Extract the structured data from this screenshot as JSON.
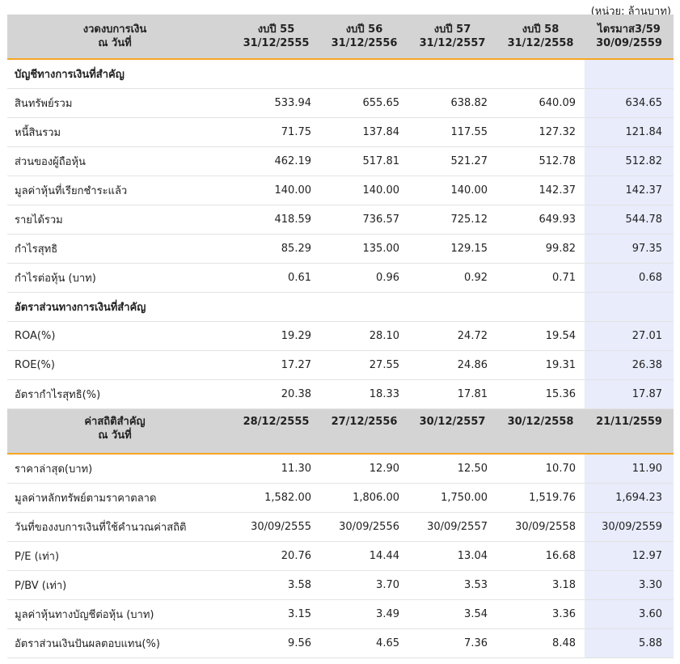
{
  "unit_note": "(หน่วย: ล้านบาท)",
  "header1": {
    "label_line1": "งวดงบการเงิน",
    "label_line2": "ณ วันที่",
    "columns": [
      {
        "line1": "งบปี 55",
        "line2": "31/12/2555"
      },
      {
        "line1": "งบปี 56",
        "line2": "31/12/2556"
      },
      {
        "line1": "งบปี 57",
        "line2": "31/12/2557"
      },
      {
        "line1": "งบปี 58",
        "line2": "31/12/2558"
      },
      {
        "line1": "ไตรมาส3/59",
        "line2": "30/09/2559"
      }
    ]
  },
  "section1_title": "บัญชีทางการเงินที่สำคัญ",
  "section1_rows": [
    {
      "label": "สินทรัพย์รวม",
      "values": [
        "533.94",
        "655.65",
        "638.82",
        "640.09",
        "634.65"
      ]
    },
    {
      "label": "หนี้สินรวม",
      "values": [
        "71.75",
        "137.84",
        "117.55",
        "127.32",
        "121.84"
      ]
    },
    {
      "label": "ส่วนของผู้ถือหุ้น",
      "values": [
        "462.19",
        "517.81",
        "521.27",
        "512.78",
        "512.82"
      ]
    },
    {
      "label": "มูลค่าหุ้นที่เรียกชำระแล้ว",
      "values": [
        "140.00",
        "140.00",
        "140.00",
        "142.37",
        "142.37"
      ]
    },
    {
      "label": "รายได้รวม",
      "values": [
        "418.59",
        "736.57",
        "725.12",
        "649.93",
        "544.78"
      ]
    },
    {
      "label": "กำไรสุทธิ",
      "values": [
        "85.29",
        "135.00",
        "129.15",
        "99.82",
        "97.35"
      ]
    },
    {
      "label": "กำไรต่อหุ้น (บาท)",
      "values": [
        "0.61",
        "0.96",
        "0.92",
        "0.71",
        "0.68"
      ]
    }
  ],
  "section2_title": "อัตราส่วนทางการเงินที่สำคัญ",
  "section2_rows": [
    {
      "label": "ROA(%)",
      "values": [
        "19.29",
        "28.10",
        "24.72",
        "19.54",
        "27.01"
      ]
    },
    {
      "label": "ROE(%)",
      "values": [
        "17.27",
        "27.55",
        "24.86",
        "19.31",
        "26.38"
      ]
    },
    {
      "label": "อัตรากำไรสุทธิ(%)",
      "values": [
        "20.38",
        "18.33",
        "17.81",
        "15.36",
        "17.87"
      ]
    }
  ],
  "header2": {
    "label_line1": "ค่าสถิติสำคัญ",
    "label_line2": "ณ วันที่",
    "columns": [
      "28/12/2555",
      "27/12/2556",
      "30/12/2557",
      "30/12/2558",
      "21/11/2559"
    ]
  },
  "section3_rows": [
    {
      "label": "ราคาล่าสุด(บาท)",
      "values": [
        "11.30",
        "12.90",
        "12.50",
        "10.70",
        "11.90"
      ]
    },
    {
      "label": "มูลค่าหลักทรัพย์ตามราคาตลาด",
      "values": [
        "1,582.00",
        "1,806.00",
        "1,750.00",
        "1,519.76",
        "1,694.23"
      ]
    },
    {
      "label": "วันที่ของงบการเงินที่ใช้คำนวณค่าสถิติ",
      "values": [
        "30/09/2555",
        "30/09/2556",
        "30/09/2557",
        "30/09/2558",
        "30/09/2559"
      ]
    },
    {
      "label": "P/E (เท่า)",
      "values": [
        "20.76",
        "14.44",
        "13.04",
        "16.68",
        "12.97"
      ]
    },
    {
      "label": "P/BV (เท่า)",
      "values": [
        "3.58",
        "3.70",
        "3.53",
        "3.18",
        "3.30"
      ]
    },
    {
      "label": "มูลค่าหุ้นทางบัญชีต่อหุ้น (บาท)",
      "values": [
        "3.15",
        "3.49",
        "3.54",
        "3.36",
        "3.60"
      ]
    },
    {
      "label": "อัตราส่วนเงินปันผลตอบแทน(%)",
      "values": [
        "9.56",
        "4.65",
        "7.36",
        "8.48",
        "5.88"
      ]
    }
  ],
  "colors": {
    "header_bg": "#d4d4d4",
    "header_underline": "#f5a623",
    "highlight_column": "#e8ecfb",
    "row_divider": "#e3e3e3"
  }
}
